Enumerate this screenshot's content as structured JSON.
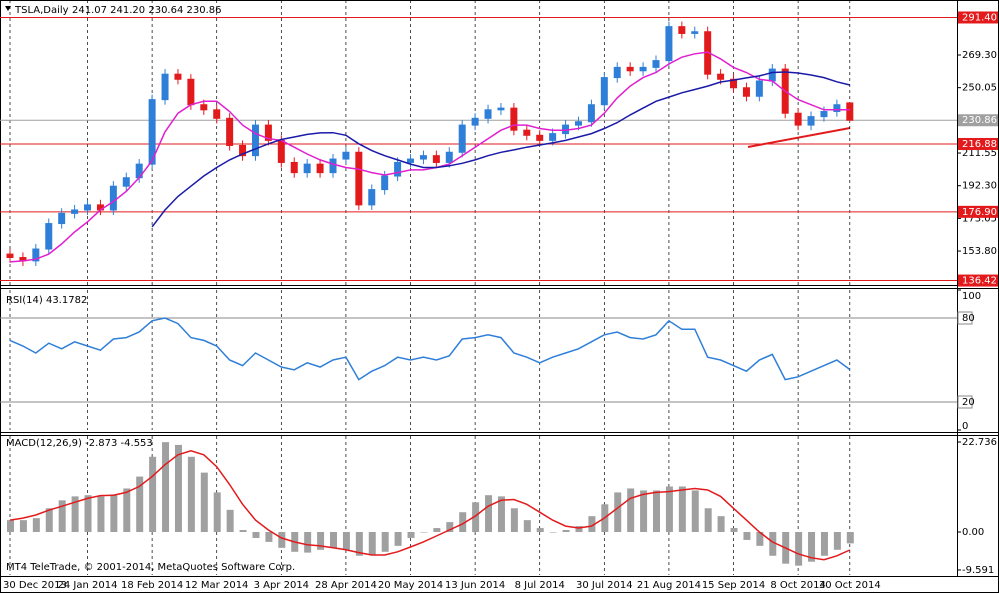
{
  "chart_data": [
    {
      "type": "candlestick",
      "title": "TSLA,Daily",
      "quote": "241.07 241.20 230.64 230.86",
      "categories": [
        "30 Dec 2013",
        null,
        null,
        null,
        null,
        null,
        "24 Jan 2014",
        null,
        null,
        null,
        null,
        "18 Feb 2014",
        null,
        null,
        null,
        null,
        "12 Mar 2014",
        null,
        null,
        null,
        null,
        "3 Apr 2014",
        null,
        null,
        null,
        null,
        "28 Apr 2014",
        null,
        null,
        null,
        null,
        "20 May 2014",
        null,
        null,
        null,
        null,
        "13 Jun 2014",
        null,
        null,
        null,
        null,
        "8 Jul 2014",
        null,
        null,
        null,
        null,
        "30 Jul 2014",
        null,
        null,
        null,
        null,
        "21 Aug 2014",
        null,
        null,
        null,
        null,
        "15 Sep 2014",
        null,
        null,
        null,
        null,
        "8 Oct 2014",
        null,
        null,
        null,
        "30 Oct 2014"
      ],
      "open": [
        152,
        150,
        148,
        155,
        170,
        176,
        178,
        181,
        178,
        192,
        197,
        205,
        243,
        258,
        255,
        240,
        237,
        232,
        216,
        210,
        228,
        219,
        206,
        200,
        205,
        200,
        208,
        212,
        181,
        190,
        198,
        206,
        208,
        210,
        206,
        212,
        228,
        232,
        237,
        238,
        225,
        222,
        219,
        223,
        228,
        230,
        240,
        256,
        262,
        260,
        262,
        266,
        286,
        282,
        283,
        258,
        255,
        250,
        245,
        254,
        261,
        235,
        228,
        233,
        236,
        241.07
      ],
      "high": [
        155,
        153,
        158,
        173,
        179,
        181,
        184,
        184,
        195,
        200,
        208,
        246,
        261,
        261,
        258,
        243,
        240,
        235,
        219,
        231,
        231,
        222,
        209,
        208,
        208,
        211,
        215,
        215,
        193,
        201,
        209,
        211,
        213,
        213,
        215,
        231,
        235,
        240,
        241,
        241,
        228,
        225,
        226,
        231,
        233,
        243,
        259,
        265,
        265,
        265,
        269,
        289,
        289,
        286,
        286,
        261,
        258,
        253,
        257,
        264,
        264,
        238,
        236,
        239,
        243,
        241.2
      ],
      "low": [
        147,
        145,
        145,
        152,
        167,
        173,
        175,
        175,
        175,
        189,
        194,
        202,
        240,
        252,
        237,
        234,
        229,
        213,
        207,
        207,
        216,
        203,
        197,
        197,
        197,
        197,
        205,
        178,
        178,
        187,
        195,
        203,
        205,
        203,
        203,
        209,
        225,
        229,
        234,
        222,
        219,
        216,
        216,
        220,
        225,
        227,
        237,
        253,
        257,
        257,
        259,
        263,
        279,
        279,
        255,
        252,
        247,
        242,
        242,
        251,
        232,
        225,
        225,
        230,
        233,
        230.64
      ],
      "close": [
        150,
        148,
        155,
        170,
        176,
        178,
        181,
        178,
        192,
        197,
        205,
        243,
        258,
        255,
        240,
        237,
        232,
        216,
        210,
        228,
        219,
        206,
        200,
        205,
        200,
        208,
        212,
        181,
        190,
        198,
        206,
        208,
        210,
        206,
        212,
        228,
        232,
        237,
        238,
        225,
        222,
        219,
        223,
        228,
        230,
        240,
        256,
        262,
        260,
        262,
        266,
        286,
        282,
        283,
        258,
        255,
        250,
        245,
        254,
        261,
        235,
        228,
        233,
        236,
        240,
        230.86
      ],
      "up_color": "#2f7fd8",
      "down_color": "#e31a1c",
      "overlays": [
        {
          "color": "#e020d0",
          "values": [
            147.4,
            148,
            149,
            152,
            158,
            165,
            171,
            178,
            183,
            189,
            197,
            207,
            224,
            235,
            240,
            242,
            242,
            236,
            228,
            223,
            220,
            219,
            215,
            211,
            207.5,
            205,
            203,
            202,
            200,
            198.6,
            200,
            201.6,
            201.6,
            203,
            205,
            210,
            215,
            220,
            225,
            228,
            228,
            226,
            225,
            225,
            226,
            228,
            235,
            244,
            251,
            256,
            259,
            264,
            268,
            270,
            271,
            267,
            262,
            259,
            255,
            254,
            248,
            243,
            240,
            237,
            237,
            237
          ]
        },
        {
          "color": "#1a1aa8",
          "values": [
            null,
            null,
            null,
            null,
            null,
            null,
            null,
            null,
            null,
            null,
            null,
            168,
            178,
            186,
            192,
            198,
            203,
            207.5,
            211,
            214,
            217,
            219.5,
            221,
            222.5,
            223.4,
            223.5,
            222,
            217,
            213,
            210,
            207.5,
            205,
            203,
            203,
            204,
            205.5,
            207.5,
            210,
            212,
            213.4,
            215,
            216.3,
            217.5,
            219,
            221,
            223,
            226,
            229.5,
            234,
            238,
            242,
            244.5,
            247,
            249,
            251,
            253.4,
            254.5,
            255.8,
            257,
            259,
            259.3,
            258.7,
            257.5,
            256,
            253.5,
            251.6
          ]
        }
      ],
      "ylim": [
        133.8,
        301.7
      ],
      "yticks": [
        {
          "value": 153.8,
          "label": "153.80"
        },
        {
          "value": 173.05,
          "label": "173.05"
        },
        {
          "value": 192.3,
          "label": "192.30"
        },
        {
          "value": 211.55,
          "label": "211.55"
        },
        {
          "value": 250.05,
          "label": "250.05"
        },
        {
          "value": 269.3,
          "label": "269.30"
        }
      ],
      "levels": [
        {
          "value": 291.4,
          "label": "291.40",
          "color": "#e31a1c"
        },
        {
          "value": 216.88,
          "label": "216.88",
          "color": "#e31a1c"
        },
        {
          "value": 176.9,
          "label": "176.90",
          "color": "#e31a1c"
        },
        {
          "value": 136.42,
          "label": "136.42",
          "color": "#e31a1c"
        },
        {
          "value": 230.86,
          "label": "230.86",
          "color": "#a0a0a0"
        }
      ]
    },
    {
      "type": "line",
      "title": "RSI(14) 43.1782",
      "color": "#2f7fd8",
      "values": [
        64,
        60,
        55,
        62,
        58,
        63,
        60,
        57,
        65,
        66,
        70,
        78,
        80,
        76,
        66,
        64,
        60,
        50,
        46,
        55,
        50,
        45,
        43,
        48,
        45,
        50,
        52,
        36,
        42,
        46,
        52,
        50,
        52,
        50,
        53,
        65,
        66,
        68,
        66,
        55,
        52,
        48,
        52,
        55,
        58,
        63,
        68,
        70,
        66,
        65,
        68,
        78,
        72,
        72,
        52,
        50,
        46,
        42,
        50,
        54,
        36,
        38,
        42,
        46,
        50,
        43.18
      ],
      "ylim": [
        0,
        100
      ],
      "yticks": [
        100,
        80,
        20,
        0
      ]
    },
    {
      "type": "macd",
      "title": "MACD(12,26,9) -2.873 -4.553",
      "footer": "MT4 TeleTrade, © 2001-2014, MetaQuotes Software Corp.",
      "histogram_color": "#a0a0a0",
      "signal_color": "#e31a1c",
      "values": [
        3,
        3,
        3.5,
        6,
        8,
        9,
        9.3,
        9,
        9.5,
        11,
        14,
        19,
        22.7,
        22,
        19,
        15,
        10,
        5.6,
        0.5,
        -1.5,
        -2.5,
        -4,
        -5,
        -5.2,
        -4.5,
        -4,
        -4.5,
        -6,
        -5.8,
        -5,
        -3.5,
        -1.5,
        0,
        1,
        2.5,
        5,
        7.5,
        9.3,
        9,
        6,
        3,
        1,
        0,
        0.5,
        1.5,
        4,
        7,
        10,
        11,
        10.5,
        10.5,
        11.5,
        11.5,
        10.5,
        6,
        4,
        1,
        -2,
        -3.5,
        -6,
        -8,
        -8.5,
        -7.5,
        -6,
        -4.5,
        -2.873
      ],
      "signal": [
        3,
        3.5,
        4.3,
        5.5,
        6.5,
        7.5,
        8.5,
        9.2,
        9.3,
        10,
        11.5,
        14,
        17,
        19.5,
        20.5,
        19.5,
        16.5,
        12,
        7,
        3,
        0.5,
        -1.5,
        -2.5,
        -3.2,
        -3.5,
        -4,
        -4.5,
        -5.2,
        -5.8,
        -5.8,
        -5,
        -3.8,
        -2.5,
        -1,
        0.5,
        2,
        4,
        6.5,
        8,
        8.2,
        7,
        5,
        3,
        1.5,
        1,
        1.5,
        3.5,
        6,
        8.5,
        9.5,
        10,
        10.2,
        10.6,
        11,
        10.6,
        9,
        6,
        3,
        0,
        -2.5,
        -4,
        -5.5,
        -6.5,
        -7,
        -6,
        -4.553
      ],
      "ylim": [
        -10.86,
        24.25
      ],
      "yticks": [
        22.736,
        {
          "value": 0,
          "label": "0.00"
        },
        -9.591
      ]
    }
  ]
}
